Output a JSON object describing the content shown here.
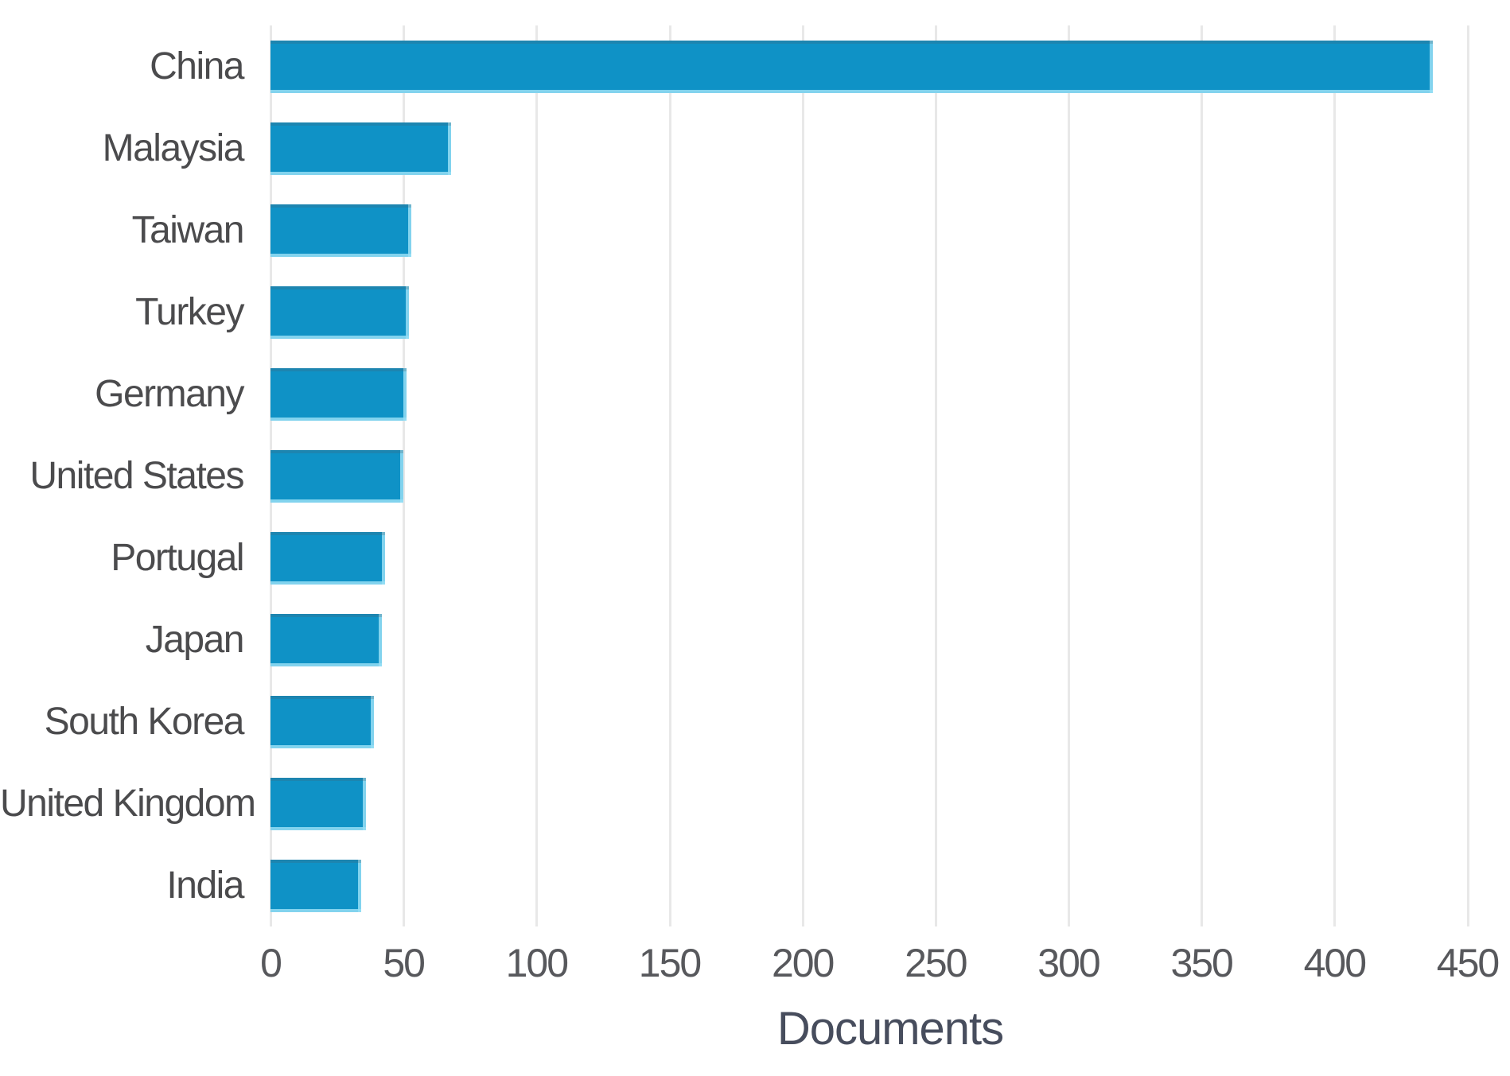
{
  "chart_data": {
    "type": "bar",
    "orientation": "horizontal",
    "xlabel": "Documents",
    "categories": [
      "China",
      "Malaysia",
      "Taiwan",
      "Turkey",
      "Germany",
      "United States",
      "Portugal",
      "Japan",
      "South Korea",
      "United Kingdom",
      "India"
    ],
    "values": [
      437,
      68,
      53,
      52,
      51,
      50,
      43,
      42,
      39,
      36,
      34
    ],
    "xticks": [
      0,
      50,
      100,
      150,
      200,
      250,
      300,
      350,
      400,
      450
    ],
    "xlim": [
      0,
      466
    ],
    "grid": "vertical",
    "legend": "none",
    "colors": {
      "bar": "#0f92c6",
      "bar_edge_light": "#8fdef3",
      "grid": "#e8e8e8",
      "tick_label": "#57585c",
      "category_label": "#4b4b4d",
      "axis_title": "#474d5d",
      "background": "#ffffff"
    }
  }
}
